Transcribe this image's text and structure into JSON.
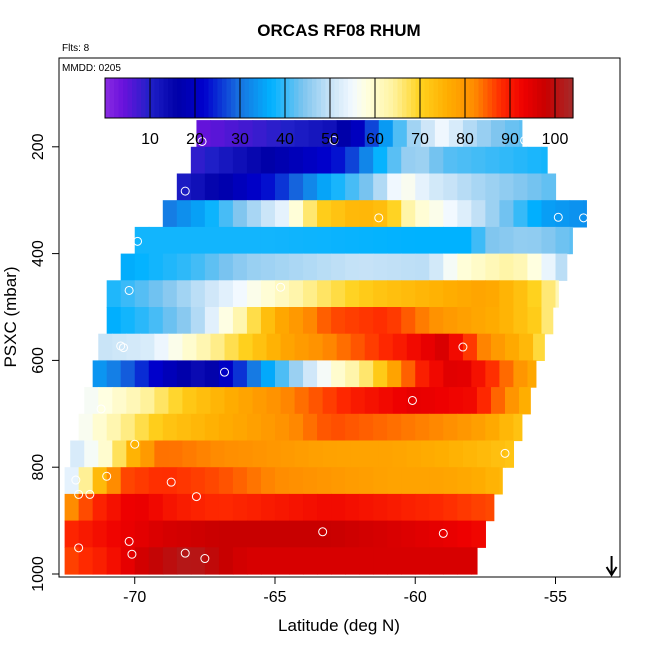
{
  "chart_data": {
    "type": "heatmap",
    "title": "ORCAS RF08 RHUM",
    "flights_note": "Flts: 8",
    "date_note": "MMDD: 0205",
    "xlabel": "Latitude (deg N)",
    "ylabel": "PSXC (mbar)",
    "xlim": [
      -72.7,
      -52.7
    ],
    "ylim": [
      1010,
      0
    ],
    "x_ticks": [
      -70,
      -65,
      -60,
      -55
    ],
    "x_tick_labels": [
      "-70",
      "-65",
      "-60",
      "-55"
    ],
    "y_ticks": [
      200,
      400,
      600,
      800,
      1000
    ],
    "y_tick_labels": [
      "200",
      "400",
      "600",
      "800",
      "1000"
    ],
    "colorbar": {
      "min": 0,
      "max": 104,
      "ticks": [
        10,
        20,
        30,
        40,
        50,
        60,
        70,
        80,
        90,
        100
      ],
      "tick_labels": [
        "10",
        "20",
        "30",
        "40",
        "50",
        "60",
        "70",
        "80",
        "90",
        "100"
      ]
    },
    "level_spacing_mbar": 50,
    "cell_width_deg": 0.5,
    "rows": [
      {
        "p": 175,
        "x0": -67.8,
        "x1": -56.2,
        "stops": [
          [
            -67.8,
            4
          ],
          [
            -64.5,
            10
          ],
          [
            -63.0,
            13
          ],
          [
            -62.0,
            20
          ],
          [
            -61.0,
            35
          ],
          [
            -60.3,
            45
          ],
          [
            -59.0,
            55
          ],
          [
            -58.0,
            48
          ],
          [
            -57.0,
            44
          ],
          [
            -56.2,
            42
          ]
        ]
      },
      {
        "p": 225,
        "x0": -68.0,
        "x1": -55.3,
        "stops": [
          [
            -68.0,
            8
          ],
          [
            -66.0,
            14
          ],
          [
            -64.5,
            18
          ],
          [
            -62.5,
            24
          ],
          [
            -61.0,
            40
          ],
          [
            -60.0,
            48
          ],
          [
            -59.0,
            42
          ],
          [
            -57.0,
            40
          ],
          [
            -55.3,
            38
          ]
        ]
      },
      {
        "p": 275,
        "x0": -68.5,
        "x1": -55.0,
        "stops": [
          [
            -68.5,
            10
          ],
          [
            -66.5,
            18
          ],
          [
            -65.0,
            24
          ],
          [
            -63.0,
            37
          ],
          [
            -61.5,
            45
          ],
          [
            -60.5,
            58
          ],
          [
            -59.5,
            52
          ],
          [
            -58.0,
            48
          ],
          [
            -56.0,
            44
          ],
          [
            -55.0,
            42
          ]
        ]
      },
      {
        "p": 325,
        "x0": -69.0,
        "x1": -53.9,
        "stops": [
          [
            -69.0,
            30
          ],
          [
            -67.5,
            36
          ],
          [
            -66.0,
            46
          ],
          [
            -64.5,
            55
          ],
          [
            -63.5,
            70
          ],
          [
            -62.0,
            75
          ],
          [
            -61.0,
            73
          ],
          [
            -60.0,
            60
          ],
          [
            -58.5,
            54
          ],
          [
            -57.0,
            45
          ],
          [
            -55.5,
            35
          ],
          [
            -53.9,
            33
          ]
        ]
      },
      {
        "p": 375,
        "x0": -70.0,
        "x1": -54.4,
        "stops": [
          [
            -70.0,
            38
          ],
          [
            -65.0,
            38
          ],
          [
            -60.0,
            37
          ],
          [
            -58.0,
            37
          ],
          [
            -57.5,
            44
          ],
          [
            -56.0,
            46
          ],
          [
            -55.0,
            44
          ],
          [
            -54.4,
            42
          ]
        ]
      },
      {
        "p": 425,
        "x0": -70.5,
        "x1": -54.6,
        "stops": [
          [
            -70.5,
            36
          ],
          [
            -68.0,
            40
          ],
          [
            -66.0,
            46
          ],
          [
            -64.0,
            48
          ],
          [
            -62.0,
            50
          ],
          [
            -59.5,
            49
          ],
          [
            -58.5,
            58
          ],
          [
            -56.5,
            64
          ],
          [
            -55.0,
            52
          ],
          [
            -54.6,
            46
          ]
        ]
      },
      {
        "p": 475,
        "x0": -71.0,
        "x1": -54.9,
        "stops": [
          [
            -71.0,
            38
          ],
          [
            -69.0,
            44
          ],
          [
            -67.5,
            50
          ],
          [
            -65.5,
            58
          ],
          [
            -63.5,
            66
          ],
          [
            -61.5,
            72
          ],
          [
            -59.5,
            75
          ],
          [
            -57.5,
            78
          ],
          [
            -56.0,
            72
          ],
          [
            -55.0,
            64
          ],
          [
            -54.9,
            60
          ]
        ]
      },
      {
        "p": 525,
        "x0": -71.0,
        "x1": -55.1,
        "stops": [
          [
            -71.0,
            36
          ],
          [
            -69.5,
            40
          ],
          [
            -68.0,
            46
          ],
          [
            -66.5,
            60
          ],
          [
            -65.0,
            76
          ],
          [
            -63.0,
            86
          ],
          [
            -61.0,
            88
          ],
          [
            -59.0,
            80
          ],
          [
            -57.0,
            76
          ],
          [
            -55.5,
            70
          ],
          [
            -55.1,
            62
          ]
        ]
      },
      {
        "p": 575,
        "x0": -71.3,
        "x1": -55.4,
        "stops": [
          [
            -71.3,
            50
          ],
          [
            -69.5,
            52
          ],
          [
            -68.0,
            60
          ],
          [
            -66.5,
            68
          ],
          [
            -64.5,
            78
          ],
          [
            -62.5,
            84
          ],
          [
            -60.5,
            90
          ],
          [
            -59.0,
            96
          ],
          [
            -57.5,
            82
          ],
          [
            -56.0,
            74
          ],
          [
            -55.4,
            66
          ]
        ]
      },
      {
        "p": 625,
        "x0": -71.5,
        "x1": -55.7,
        "stops": [
          [
            -71.5,
            35
          ],
          [
            -70.5,
            30
          ],
          [
            -69.0,
            20
          ],
          [
            -67.5,
            13
          ],
          [
            -66.0,
            28
          ],
          [
            -64.5,
            44
          ],
          [
            -63.0,
            58
          ],
          [
            -61.5,
            68
          ],
          [
            -60.0,
            88
          ],
          [
            -58.5,
            96
          ],
          [
            -57.0,
            86
          ],
          [
            -55.7,
            76
          ]
        ]
      },
      {
        "p": 675,
        "x0": -71.8,
        "x1": -55.9,
        "stops": [
          [
            -71.8,
            55
          ],
          [
            -70.0,
            62
          ],
          [
            -68.0,
            72
          ],
          [
            -66.0,
            78
          ],
          [
            -64.0,
            84
          ],
          [
            -62.0,
            90
          ],
          [
            -60.0,
            94
          ],
          [
            -58.0,
            92
          ],
          [
            -56.5,
            80
          ],
          [
            -55.9,
            74
          ]
        ]
      },
      {
        "p": 725,
        "x0": -72.0,
        "x1": -56.2,
        "stops": [
          [
            -72.0,
            55
          ],
          [
            -70.5,
            64
          ],
          [
            -69.0,
            72
          ],
          [
            -67.0,
            76
          ],
          [
            -65.0,
            80
          ],
          [
            -63.0,
            86
          ],
          [
            -61.0,
            84
          ],
          [
            -59.0,
            82
          ],
          [
            -57.5,
            78
          ],
          [
            -56.2,
            72
          ]
        ]
      },
      {
        "p": 775,
        "x0": -72.3,
        "x1": -56.5,
        "stops": [
          [
            -72.3,
            50
          ],
          [
            -71.0,
            60
          ],
          [
            -70.0,
            76
          ],
          [
            -69.0,
            84
          ],
          [
            -67.0,
            82
          ],
          [
            -65.0,
            80
          ],
          [
            -63.0,
            78
          ],
          [
            -61.0,
            78
          ],
          [
            -59.0,
            76
          ],
          [
            -57.5,
            74
          ],
          [
            -56.5,
            72
          ]
        ]
      },
      {
        "p": 825,
        "x0": -72.5,
        "x1": -56.9,
        "stops": [
          [
            -72.5,
            48
          ],
          [
            -71.5,
            70
          ],
          [
            -70.5,
            86
          ],
          [
            -69.0,
            88
          ],
          [
            -67.0,
            86
          ],
          [
            -65.0,
            82
          ],
          [
            -63.0,
            80
          ],
          [
            -61.0,
            78
          ],
          [
            -59.0,
            78
          ],
          [
            -57.5,
            76
          ],
          [
            -56.9,
            74
          ]
        ]
      },
      {
        "p": 875,
        "x0": -72.5,
        "x1": -57.2,
        "stops": [
          [
            -72.5,
            80
          ],
          [
            -71.5,
            88
          ],
          [
            -70.0,
            94
          ],
          [
            -68.5,
            90
          ],
          [
            -67.0,
            88
          ],
          [
            -65.0,
            90
          ],
          [
            -63.0,
            92
          ],
          [
            -61.0,
            90
          ],
          [
            -59.0,
            88
          ],
          [
            -57.2,
            86
          ]
        ]
      },
      {
        "p": 925,
        "x0": -72.5,
        "x1": -57.5,
        "stops": [
          [
            -72.5,
            88
          ],
          [
            -71.0,
            92
          ],
          [
            -69.0,
            96
          ],
          [
            -67.0,
            98
          ],
          [
            -65.0,
            98
          ],
          [
            -63.0,
            98
          ],
          [
            -61.0,
            96
          ],
          [
            -59.0,
            94
          ],
          [
            -57.5,
            92
          ]
        ]
      },
      {
        "p": 975,
        "x0": -72.5,
        "x1": -57.8,
        "stops": [
          [
            -72.5,
            86
          ],
          [
            -71.0,
            90
          ],
          [
            -69.5,
            98
          ],
          [
            -68.0,
            102
          ],
          [
            -67.5,
            100
          ],
          [
            -66.0,
            96
          ],
          [
            -64.0,
            96
          ],
          [
            -62.0,
            96
          ],
          [
            -60.0,
            96
          ],
          [
            -57.8,
            96
          ]
        ]
      }
    ],
    "points": [
      {
        "lat": -67.6,
        "p": 190
      },
      {
        "lat": -62.9,
        "p": 188
      },
      {
        "lat": -56.1,
        "p": 188
      },
      {
        "lat": -68.2,
        "p": 283
      },
      {
        "lat": -61.3,
        "p": 333
      },
      {
        "lat": -54.9,
        "p": 332
      },
      {
        "lat": -54.0,
        "p": 333
      },
      {
        "lat": -69.9,
        "p": 377
      },
      {
        "lat": -64.8,
        "p": 463
      },
      {
        "lat": -70.2,
        "p": 469
      },
      {
        "lat": -70.5,
        "p": 573
      },
      {
        "lat": -70.4,
        "p": 576
      },
      {
        "lat": -58.3,
        "p": 575
      },
      {
        "lat": -66.8,
        "p": 622
      },
      {
        "lat": -60.1,
        "p": 675
      },
      {
        "lat": -71.2,
        "p": 691
      },
      {
        "lat": -70.0,
        "p": 757
      },
      {
        "lat": -56.8,
        "p": 774
      },
      {
        "lat": -72.1,
        "p": 824
      },
      {
        "lat": -71.0,
        "p": 817
      },
      {
        "lat": -68.7,
        "p": 828
      },
      {
        "lat": -72.0,
        "p": 851
      },
      {
        "lat": -71.6,
        "p": 851
      },
      {
        "lat": -67.8,
        "p": 855
      },
      {
        "lat": -63.3,
        "p": 921
      },
      {
        "lat": -59.0,
        "p": 924
      },
      {
        "lat": -70.2,
        "p": 939
      },
      {
        "lat": -72.0,
        "p": 951
      },
      {
        "lat": -70.1,
        "p": 963
      },
      {
        "lat": -68.2,
        "p": 961
      },
      {
        "lat": -67.5,
        "p": 971
      }
    ],
    "marker": {
      "symbol": "arrow-down",
      "lat": -53.0
    }
  }
}
